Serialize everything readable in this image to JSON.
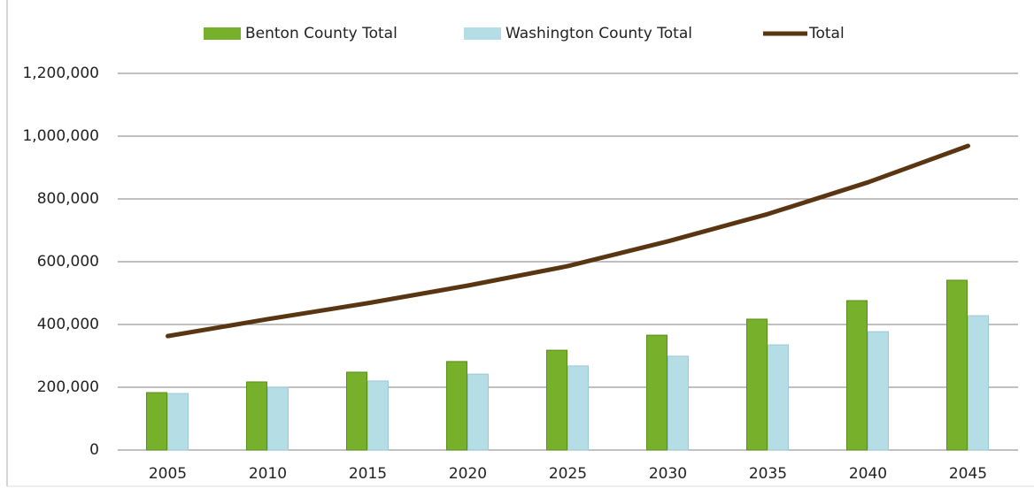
{
  "chart_data": {
    "type": "bar_line",
    "categories": [
      "2005",
      "2010",
      "2015",
      "2020",
      "2025",
      "2030",
      "2035",
      "2040",
      "2045"
    ],
    "series": [
      {
        "name": "Benton County Total",
        "type": "bar",
        "color": "#77b02a",
        "values": [
          183000,
          217000,
          248000,
          282000,
          318000,
          366000,
          417000,
          476000,
          541000
        ]
      },
      {
        "name": "Washington County Total",
        "type": "bar",
        "color": "#b4dde6",
        "values": [
          180000,
          200000,
          220000,
          242000,
          268000,
          299000,
          335000,
          377000,
          428000
        ]
      },
      {
        "name": "Total",
        "type": "line",
        "color": "#5a3512",
        "values": [
          363000,
          417000,
          468000,
          524000,
          586000,
          665000,
          752000,
          853000,
          969000
        ]
      }
    ],
    "ylim": [
      0,
      1200000
    ],
    "yticks": [
      0,
      {
        "value": 200000,
        "label": "200,000"
      },
      {
        "value": 400000,
        "label": "400,000"
      },
      {
        "value": 600000,
        "label": "600,000"
      },
      {
        "value": 800000,
        "label": "800,000"
      },
      {
        "value": 1000000,
        "label": "1,000,000"
      },
      {
        "value": 1200000,
        "label": "1,200,000"
      }
    ],
    "grid": true,
    "legend": "top"
  }
}
